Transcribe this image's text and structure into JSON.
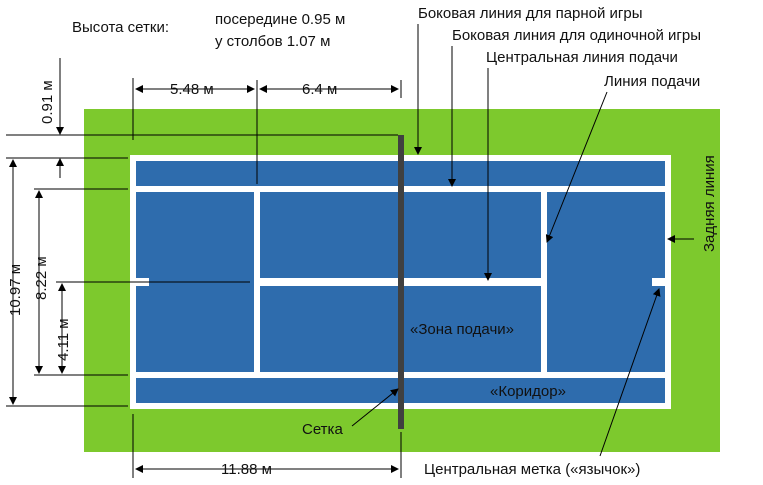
{
  "colors": {
    "background": "#ffffff",
    "surround": "#7dc92d",
    "court": "#2e6cad",
    "lines": "#ffffff",
    "net": "#404040",
    "annotation": "#000000"
  },
  "net_height": {
    "label": "Высота сетки:",
    "middle": "посередине 0.95 м",
    "posts": "у столбов 1.07 м"
  },
  "callouts": {
    "doubles_sideline": "Боковая линия для парной игры",
    "singles_sideline": "Боковая линия для одиночной игры",
    "center_service_line": "Центральная линия подачи",
    "service_line": "Линия подачи",
    "baseline": "Задняя линия",
    "service_box": "«Зона подачи»",
    "alley": "«Коридор»",
    "net": "Сетка",
    "center_mark": "Центральная метка («язычок»)"
  },
  "dimensions": {
    "baseline_to_service": "5.48 м",
    "service_to_net": "6.4 м",
    "net_post_offset": "0.91 м",
    "doubles_width": "10.97 м",
    "singles_width": "8.22 м",
    "half_singles": "4.11 м",
    "half_length": "11.88 м"
  }
}
